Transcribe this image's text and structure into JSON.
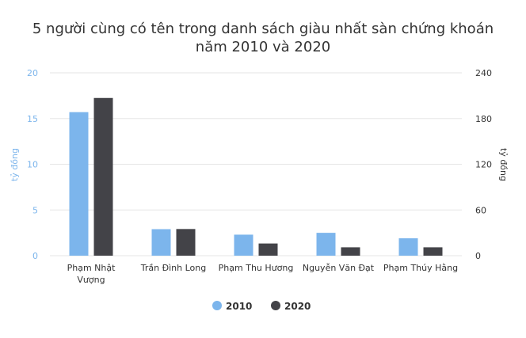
{
  "chart_data": {
    "type": "bar",
    "title": "5 người cùng có tên trong danh sách giàu nhất sàn chứng khoán năm 2010 và 2020",
    "title_lines": [
      "5 người cùng có tên trong danh sách giàu nhất sàn chứng khoán",
      "năm 2010 và 2020"
    ],
    "categories": [
      "Phạm Nhật Vượng",
      "Trần Đình Long",
      "Phạm Thu Hương",
      "Nguyễn Văn Đạt",
      "Phạm Thúy Hằng"
    ],
    "category_lines": [
      [
        "Phạm Nhật",
        "Vượng"
      ],
      [
        "Trần Đình Long"
      ],
      [
        "Phạm Thu Hương"
      ],
      [
        "Nguyễn Văn Đạt"
      ],
      [
        "Phạm Thúy Hằng"
      ]
    ],
    "series": [
      {
        "name": "2010",
        "axis": "left",
        "color": "#7cb5ec",
        "values": [
          15.7,
          2.9,
          2.3,
          2.5,
          1.9
        ]
      },
      {
        "name": "2020",
        "axis": "right",
        "color": "#434348",
        "values": [
          207,
          35,
          16,
          11,
          11
        ]
      }
    ],
    "y_left": {
      "label": "tỷ đồng",
      "ylim": [
        0,
        20
      ],
      "ticks": [
        "0",
        "5",
        "10",
        "15",
        "20"
      ],
      "color": "#7cb5ec"
    },
    "y_right": {
      "label": "tỷ đồng",
      "ylim": [
        0,
        240
      ],
      "ticks": [
        "0",
        "60",
        "120",
        "180",
        "240"
      ],
      "color": "#333333"
    },
    "grid": true,
    "legend_position": "bottom-center"
  }
}
